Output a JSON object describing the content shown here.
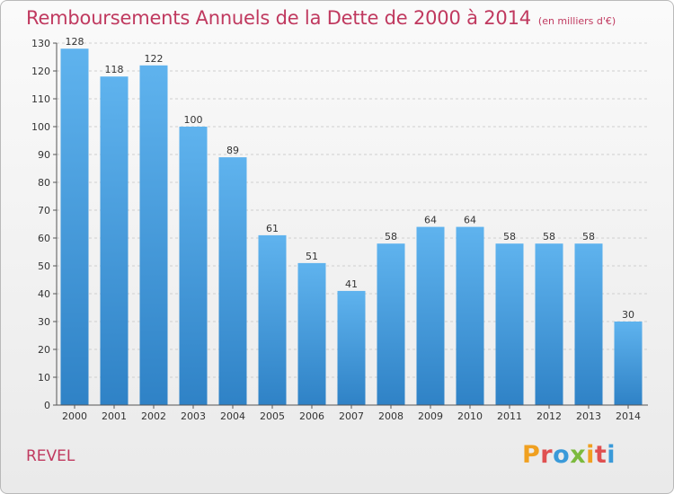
{
  "header": {
    "title": "Remboursements Annuels de la Dette de 2000 à 2014",
    "unit": "(en milliers d'€)"
  },
  "footer": {
    "commune": "REVEL",
    "logo_text": "Proxiti",
    "logo_colors": [
      "#f0a020",
      "#e05050",
      "#3a9ad9",
      "#7cba3d",
      "#f0a020",
      "#e05050",
      "#3a9ad9"
    ]
  },
  "colors": {
    "title": "#c0395f",
    "bar_top": "#5fb3ee",
    "bar_bottom": "#2f82c6",
    "grid": "#cfcfcf",
    "axis": "#555555"
  },
  "chart_data": {
    "type": "bar",
    "title": "Remboursements Annuels de la Dette de 2000 à 2014",
    "categories": [
      "2000",
      "2001",
      "2002",
      "2003",
      "2004",
      "2005",
      "2006",
      "2007",
      "2008",
      "2009",
      "2010",
      "2011",
      "2012",
      "2013",
      "2014"
    ],
    "values": [
      128,
      118,
      122,
      100,
      89,
      61,
      51,
      41,
      58,
      64,
      64,
      58,
      58,
      58,
      30
    ],
    "ylim": [
      0,
      130
    ],
    "yticks": [
      0,
      10,
      20,
      30,
      40,
      50,
      60,
      70,
      80,
      90,
      100,
      110,
      120,
      130
    ],
    "grid": true,
    "data_labels": true,
    "xlabel": "",
    "ylabel": ""
  }
}
